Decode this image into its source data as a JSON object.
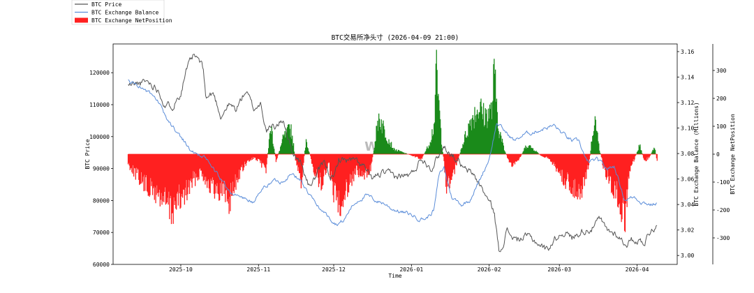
{
  "chart_data": {
    "type": "line",
    "title": "BTC交易所净头寸 (2026-04-09 21:00)",
    "xlabel": "Time",
    "watermark": "W",
    "x_range": [
      "2025-09-10",
      "2026-04-09"
    ],
    "x_ticks": [
      {
        "date": "2025-10-01",
        "label": "2025-10"
      },
      {
        "date": "2025-11-01",
        "label": "2025-11"
      },
      {
        "date": "2025-12-01",
        "label": "2025-12"
      },
      {
        "date": "2026-01-01",
        "label": "2026-01"
      },
      {
        "date": "2026-02-01",
        "label": "2026-02"
      },
      {
        "date": "2026-03-01",
        "label": "2026-03"
      },
      {
        "date": "2026-04-01",
        "label": "2026-04"
      }
    ],
    "axes": {
      "price": {
        "label": "BTC Price",
        "ylim": [
          60000,
          129000
        ],
        "ticks": [
          "60000",
          "70000",
          "80000",
          "90000",
          "100000",
          "110000",
          "120000"
        ]
      },
      "balance": {
        "label": "BTC Exchange Balance (Millions)",
        "ylim": [
          2.993,
          3.166
        ],
        "ticks": [
          "3.00",
          "3.02",
          "3.04",
          "3.06",
          "3.08",
          "3.10",
          "3.12",
          "3.14",
          "3.16"
        ]
      },
      "netposition": {
        "label": "BTC Exchange NetPosition",
        "ylim": [
          -395,
          395
        ],
        "ticks": [
          "-300",
          "-200",
          "-100",
          "0",
          "100",
          "200",
          "300"
        ]
      }
    },
    "legend": [
      {
        "name": "BTC Price",
        "color": "#555555",
        "kind": "line"
      },
      {
        "name": "BTC Exchange Balance",
        "color": "#5b8dd9",
        "kind": "line"
      },
      {
        "name": "BTC Exchange NetPosition",
        "color": "#ff2020",
        "kind": "patch"
      }
    ],
    "netposition_colors": {
      "positive": "#1a8a1a",
      "negative": "#ff2020"
    },
    "series": [
      {
        "name": "BTC Price",
        "axis": "price",
        "color": "#555555",
        "points": [
          [
            "2025-09-10",
            116000
          ],
          [
            "2025-09-14",
            116500
          ],
          [
            "2025-09-18",
            117200
          ],
          [
            "2025-09-22",
            115000
          ],
          [
            "2025-09-25",
            109500
          ],
          [
            "2025-09-28",
            110000
          ],
          [
            "2025-10-01",
            114000
          ],
          [
            "2025-10-03",
            120500
          ],
          [
            "2025-10-06",
            125000
          ],
          [
            "2025-10-08",
            124000
          ],
          [
            "2025-10-10",
            121000
          ],
          [
            "2025-10-11",
            112000
          ],
          [
            "2025-10-14",
            113500
          ],
          [
            "2025-10-17",
            106500
          ],
          [
            "2025-10-20",
            110000
          ],
          [
            "2025-10-23",
            108500
          ],
          [
            "2025-10-27",
            114500
          ],
          [
            "2025-10-30",
            108500
          ],
          [
            "2025-11-02",
            110500
          ],
          [
            "2025-11-04",
            102000
          ],
          [
            "2025-11-08",
            103000
          ],
          [
            "2025-11-11",
            105500
          ],
          [
            "2025-11-14",
            96000
          ],
          [
            "2025-11-18",
            91500
          ],
          [
            "2025-11-21",
            84500
          ],
          [
            "2025-11-24",
            87500
          ],
          [
            "2025-11-27",
            91500
          ],
          [
            "2025-12-01",
            86500
          ],
          [
            "2025-12-03",
            93000
          ],
          [
            "2025-12-09",
            92500
          ],
          [
            "2025-12-13",
            90500
          ],
          [
            "2025-12-16",
            86500
          ],
          [
            "2025-12-20",
            88500
          ],
          [
            "2025-12-26",
            87500
          ],
          [
            "2026-01-01",
            88000
          ],
          [
            "2026-01-05",
            93500
          ],
          [
            "2026-01-09",
            90500
          ],
          [
            "2026-01-14",
            97000
          ],
          [
            "2026-01-19",
            93000
          ],
          [
            "2026-01-22",
            89500
          ],
          [
            "2026-01-26",
            88000
          ],
          [
            "2026-01-30",
            82500
          ],
          [
            "2026-02-03",
            76500
          ],
          [
            "2026-02-05",
            63500
          ],
          [
            "2026-02-08",
            70500
          ],
          [
            "2026-02-12",
            67500
          ],
          [
            "2026-02-16",
            68800
          ],
          [
            "2026-02-20",
            67000
          ],
          [
            "2026-02-24",
            64500
          ],
          [
            "2026-02-27",
            67800
          ],
          [
            "2026-03-03",
            70500
          ],
          [
            "2026-03-06",
            68200
          ],
          [
            "2026-03-10",
            70500
          ],
          [
            "2026-03-14",
            71500
          ],
          [
            "2026-03-17",
            74000
          ],
          [
            "2026-03-20",
            70500
          ],
          [
            "2026-03-24",
            69500
          ],
          [
            "2026-03-27",
            66500
          ],
          [
            "2026-03-31",
            67800
          ],
          [
            "2026-04-04",
            67200
          ],
          [
            "2026-04-07",
            71500
          ],
          [
            "2026-04-09",
            71800
          ]
        ]
      },
      {
        "name": "BTC Exchange Balance",
        "axis": "balance",
        "color": "#5b8dd9",
        "points": [
          [
            "2025-09-10",
            3.137
          ],
          [
            "2025-09-14",
            3.134
          ],
          [
            "2025-09-18",
            3.128
          ],
          [
            "2025-09-22",
            3.12
          ],
          [
            "2025-09-25",
            3.108
          ],
          [
            "2025-09-29",
            3.098
          ],
          [
            "2025-10-02",
            3.091
          ],
          [
            "2025-10-05",
            3.082
          ],
          [
            "2025-10-08",
            3.079
          ],
          [
            "2025-10-12",
            3.074
          ],
          [
            "2025-10-15",
            3.065
          ],
          [
            "2025-10-19",
            3.054
          ],
          [
            "2025-10-22",
            3.048
          ],
          [
            "2025-10-26",
            3.045
          ],
          [
            "2025-10-30",
            3.042
          ],
          [
            "2025-11-03",
            3.053
          ],
          [
            "2025-11-07",
            3.059
          ],
          [
            "2025-11-10",
            3.058
          ],
          [
            "2025-11-14",
            3.064
          ],
          [
            "2025-11-18",
            3.059
          ],
          [
            "2025-11-21",
            3.048
          ],
          [
            "2025-11-24",
            3.04
          ],
          [
            "2025-11-28",
            3.032
          ],
          [
            "2025-12-02",
            3.025
          ],
          [
            "2025-12-05",
            3.027
          ],
          [
            "2025-12-08",
            3.038
          ],
          [
            "2025-12-11",
            3.044
          ],
          [
            "2025-12-14",
            3.047
          ],
          [
            "2025-12-18",
            3.043
          ],
          [
            "2025-12-21",
            3.041
          ],
          [
            "2025-12-24",
            3.037
          ],
          [
            "2025-12-28",
            3.034
          ],
          [
            "2026-01-01",
            3.032
          ],
          [
            "2026-01-04",
            3.029
          ],
          [
            "2026-01-07",
            3.029
          ],
          [
            "2026-01-10",
            3.036
          ],
          [
            "2026-01-12",
            3.063
          ],
          [
            "2026-01-14",
            3.069
          ],
          [
            "2026-01-17",
            3.046
          ],
          [
            "2026-01-21",
            3.04
          ],
          [
            "2026-01-24",
            3.043
          ],
          [
            "2026-01-28",
            3.058
          ],
          [
            "2026-02-01",
            3.076
          ],
          [
            "2026-02-04",
            3.104
          ],
          [
            "2026-02-07",
            3.098
          ],
          [
            "2026-02-11",
            3.09
          ],
          [
            "2026-02-15",
            3.095
          ],
          [
            "2026-02-19",
            3.097
          ],
          [
            "2026-02-23",
            3.1
          ],
          [
            "2026-02-27",
            3.102
          ],
          [
            "2026-03-02",
            3.096
          ],
          [
            "2026-03-06",
            3.09
          ],
          [
            "2026-03-09",
            3.089
          ],
          [
            "2026-03-12",
            3.073
          ],
          [
            "2026-03-16",
            3.075
          ],
          [
            "2026-03-20",
            3.068
          ],
          [
            "2026-03-23",
            3.07
          ],
          [
            "2026-03-27",
            3.044
          ],
          [
            "2026-03-31",
            3.046
          ],
          [
            "2026-04-03",
            3.042
          ],
          [
            "2026-04-07",
            3.04
          ],
          [
            "2026-04-09",
            3.041
          ]
        ]
      },
      {
        "name": "BTC Exchange NetPosition",
        "axis": "netposition",
        "kind": "fill",
        "points": [
          [
            "2025-09-10",
            -40
          ],
          [
            "2025-09-13",
            -80
          ],
          [
            "2025-09-16",
            -120
          ],
          [
            "2025-09-19",
            -150
          ],
          [
            "2025-09-22",
            -170
          ],
          [
            "2025-09-25",
            -200
          ],
          [
            "2025-09-27",
            -240
          ],
          [
            "2025-09-29",
            -210
          ],
          [
            "2025-10-02",
            -180
          ],
          [
            "2025-10-06",
            -110
          ],
          [
            "2025-10-09",
            -70
          ],
          [
            "2025-10-12",
            -120
          ],
          [
            "2025-10-15",
            -160
          ],
          [
            "2025-10-18",
            -140
          ],
          [
            "2025-10-20",
            -200
          ],
          [
            "2025-10-24",
            -90
          ],
          [
            "2025-10-27",
            -40
          ],
          [
            "2025-10-30",
            -15
          ],
          [
            "2025-11-01",
            -30
          ],
          [
            "2025-11-04",
            -60
          ],
          [
            "2025-11-06",
            120
          ],
          [
            "2025-11-08",
            -30
          ],
          [
            "2025-11-11",
            70
          ],
          [
            "2025-11-14",
            110
          ],
          [
            "2025-11-16",
            -40
          ],
          [
            "2025-11-18",
            -120
          ],
          [
            "2025-11-20",
            60
          ],
          [
            "2025-11-23",
            -60
          ],
          [
            "2025-11-26",
            -130
          ],
          [
            "2025-11-29",
            -40
          ],
          [
            "2025-12-01",
            -160
          ],
          [
            "2025-12-04",
            -200
          ],
          [
            "2025-12-07",
            -120
          ],
          [
            "2025-12-10",
            -70
          ],
          [
            "2025-12-13",
            -100
          ],
          [
            "2025-12-16",
            -50
          ],
          [
            "2025-12-19",
            160
          ],
          [
            "2025-12-22",
            80
          ],
          [
            "2025-12-25",
            20
          ],
          [
            "2025-12-28",
            10
          ],
          [
            "2026-01-01",
            -5
          ],
          [
            "2026-01-05",
            -20
          ],
          [
            "2026-01-08",
            40
          ],
          [
            "2026-01-10",
            120
          ],
          [
            "2026-01-11",
            340
          ],
          [
            "2026-01-13",
            60
          ],
          [
            "2026-01-15",
            -130
          ],
          [
            "2026-01-17",
            -100
          ],
          [
            "2026-01-19",
            -40
          ],
          [
            "2026-01-22",
            60
          ],
          [
            "2026-01-25",
            150
          ],
          [
            "2026-01-28",
            200
          ],
          [
            "2026-01-30",
            160
          ],
          [
            "2026-02-02",
            180
          ],
          [
            "2026-02-03",
            330
          ],
          [
            "2026-02-05",
            100
          ],
          [
            "2026-02-07",
            20
          ],
          [
            "2026-02-10",
            -60
          ],
          [
            "2026-02-13",
            -20
          ],
          [
            "2026-02-16",
            40
          ],
          [
            "2026-02-19",
            20
          ],
          [
            "2026-02-22",
            -10
          ],
          [
            "2026-02-25",
            -20
          ],
          [
            "2026-02-28",
            -60
          ],
          [
            "2026-03-03",
            -110
          ],
          [
            "2026-03-06",
            -130
          ],
          [
            "2026-03-09",
            -160
          ],
          [
            "2026-03-11",
            -120
          ],
          [
            "2026-03-13",
            -30
          ],
          [
            "2026-03-15",
            160
          ],
          [
            "2026-03-17",
            20
          ],
          [
            "2026-03-19",
            -70
          ],
          [
            "2026-03-21",
            -110
          ],
          [
            "2026-03-24",
            -170
          ],
          [
            "2026-03-26",
            -240
          ],
          [
            "2026-03-27",
            -280
          ],
          [
            "2026-03-29",
            -70
          ],
          [
            "2026-03-31",
            -20
          ],
          [
            "2026-04-02",
            40
          ],
          [
            "2026-04-04",
            -30
          ],
          [
            "2026-04-06",
            -10
          ],
          [
            "2026-04-08",
            30
          ],
          [
            "2026-04-09",
            -30
          ]
        ]
      }
    ]
  }
}
